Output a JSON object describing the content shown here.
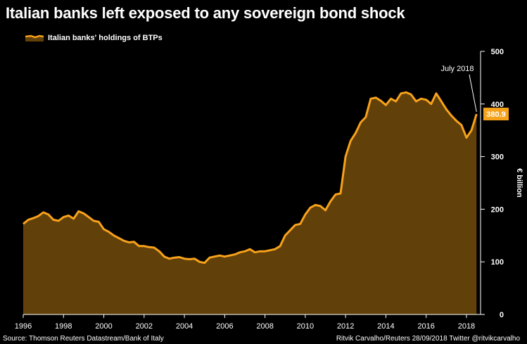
{
  "title": "Italian banks left exposed to any sovereign bond shock",
  "legend_label": "Italian banks' holdings of BTPs",
  "source": "Source: Thomson Reuters Datastream/Bank of Italy",
  "credit": "Ritvik Carvalho/Reuters 28/09/2018 Twitter @ritvikcarvalho",
  "colors": {
    "line": "#f7a21b",
    "fill": "#62400a",
    "background": "#000000",
    "axis": "#ffffff"
  },
  "chart_data": {
    "type": "area",
    "title": "Italian banks left exposed to any sovereign bond shock",
    "ylabel": "€ billion",
    "ylim": [
      0,
      500
    ],
    "yticks": [
      0,
      100,
      200,
      300,
      400,
      500
    ],
    "xlim": [
      1996.0,
      2018.7
    ],
    "xticks": [
      "1996",
      "1998",
      "2000",
      "2002",
      "2004",
      "2006",
      "2008",
      "2010",
      "2012",
      "2014",
      "2016",
      "2018"
    ],
    "y_axis_side": "right",
    "grid": false,
    "legend": "top-left",
    "annotation": {
      "label": "July 2018",
      "x": 2018.5,
      "value": 380.9,
      "value_label": "380.9"
    },
    "series": [
      {
        "name": "Italian banks' holdings of BTPs",
        "x": [
          1996.0,
          1996.25,
          1996.5,
          1996.75,
          1997.0,
          1997.25,
          1997.5,
          1997.75,
          1998.0,
          1998.25,
          1998.5,
          1998.75,
          1999.0,
          1999.25,
          1999.5,
          1999.75,
          2000.0,
          2000.25,
          2000.5,
          2000.75,
          2001.0,
          2001.25,
          2001.5,
          2001.75,
          2002.0,
          2002.25,
          2002.5,
          2002.75,
          2003.0,
          2003.25,
          2003.5,
          2003.75,
          2004.0,
          2004.25,
          2004.5,
          2004.75,
          2005.0,
          2005.25,
          2005.5,
          2005.75,
          2006.0,
          2006.25,
          2006.5,
          2006.75,
          2007.0,
          2007.25,
          2007.5,
          2007.75,
          2008.0,
          2008.25,
          2008.5,
          2008.75,
          2009.0,
          2009.25,
          2009.5,
          2009.75,
          2010.0,
          2010.25,
          2010.5,
          2010.75,
          2011.0,
          2011.25,
          2011.5,
          2011.75,
          2012.0,
          2012.25,
          2012.5,
          2012.75,
          2013.0,
          2013.25,
          2013.5,
          2013.75,
          2014.0,
          2014.25,
          2014.5,
          2014.75,
          2015.0,
          2015.25,
          2015.5,
          2015.75,
          2016.0,
          2016.25,
          2016.5,
          2016.75,
          2017.0,
          2017.25,
          2017.5,
          2017.75,
          2018.0,
          2018.25,
          2018.5
        ],
        "values": [
          172,
          180,
          183,
          187,
          194,
          190,
          180,
          178,
          185,
          188,
          182,
          196,
          192,
          185,
          178,
          176,
          162,
          157,
          150,
          145,
          140,
          137,
          138,
          130,
          130,
          128,
          127,
          120,
          110,
          106,
          108,
          109,
          106,
          105,
          106,
          100,
          98,
          108,
          110,
          112,
          110,
          112,
          114,
          118,
          120,
          124,
          118,
          120,
          120,
          122,
          124,
          130,
          150,
          160,
          170,
          172,
          190,
          203,
          208,
          206,
          198,
          215,
          228,
          230,
          300,
          330,
          345,
          365,
          375,
          410,
          412,
          406,
          398,
          410,
          405,
          420,
          422,
          418,
          405,
          410,
          408,
          400,
          420,
          405,
          390,
          378,
          368,
          360,
          336,
          350,
          380.9
        ]
      }
    ]
  }
}
